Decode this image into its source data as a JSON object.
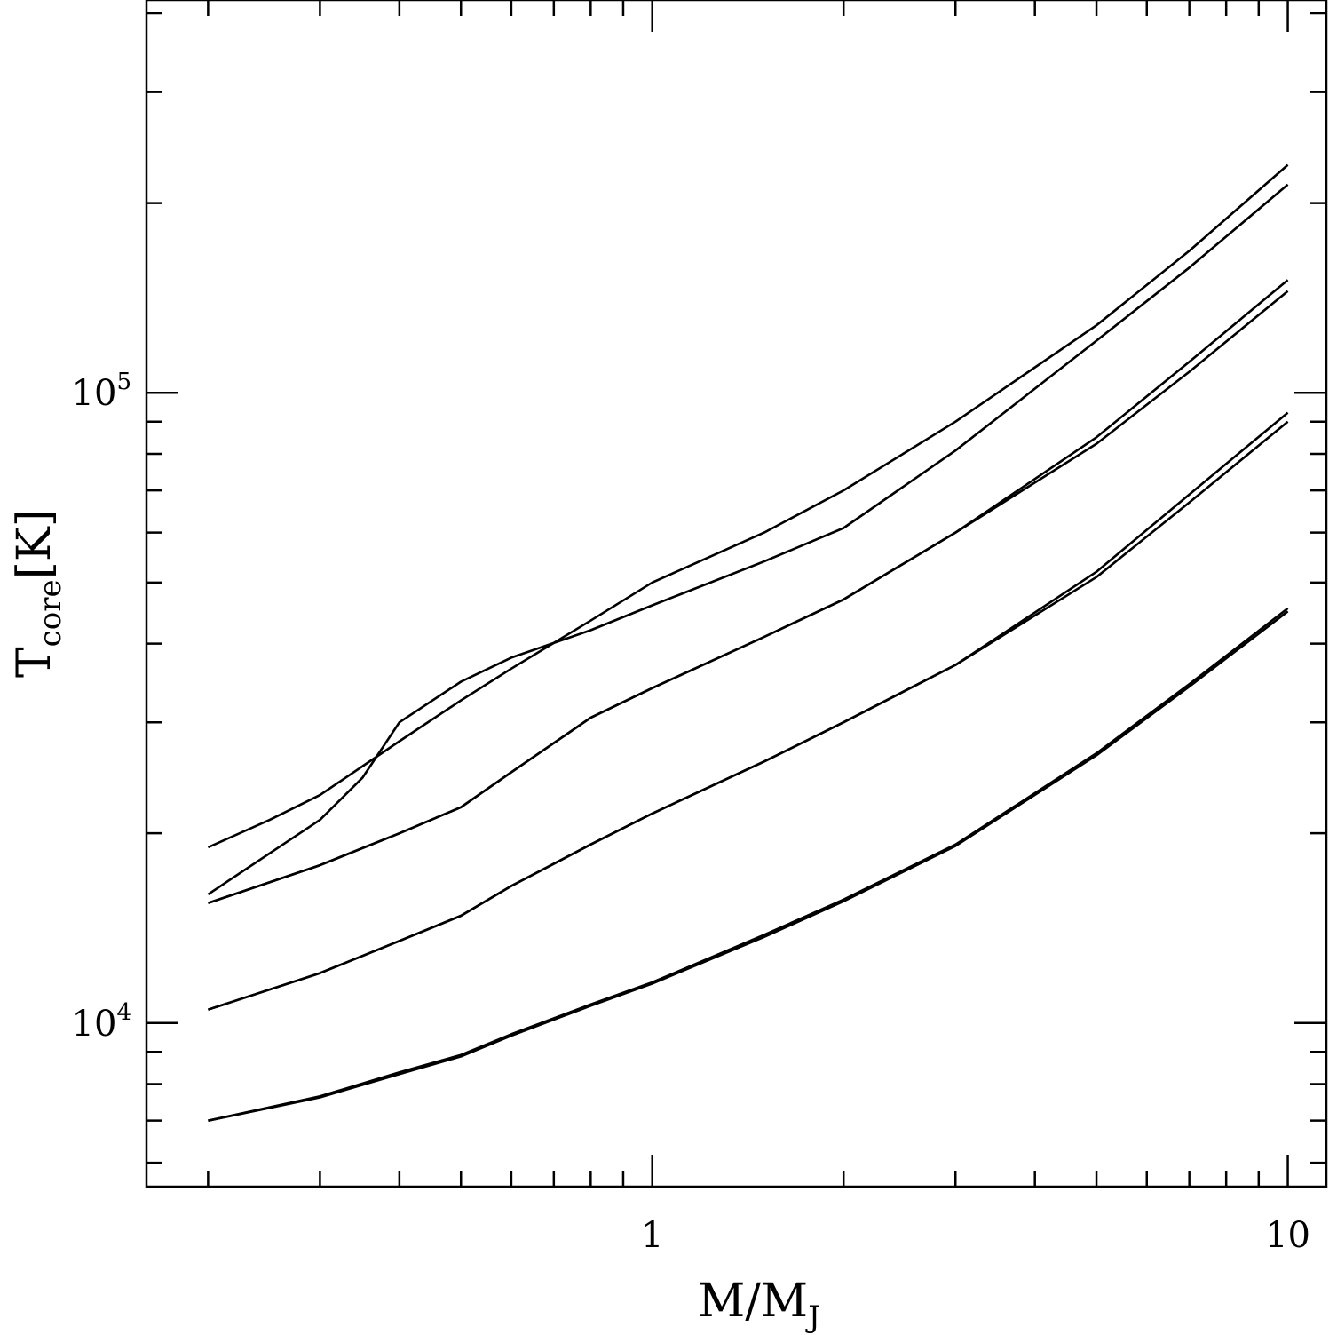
{
  "chart_data": {
    "type": "line",
    "xlabel": {
      "main": "M/M",
      "sub": "J"
    },
    "ylabel": {
      "main": "T",
      "sub": "core",
      "unit": "[K]"
    },
    "xscale": "log",
    "yscale": "log",
    "xlim": [
      0.16,
      11.5
    ],
    "ylim": [
      5500,
      420000
    ],
    "x_ticks": [
      {
        "value": 1,
        "label": "1"
      },
      {
        "value": 10,
        "label": "10"
      }
    ],
    "y_ticks": [
      {
        "value": 10000,
        "base": "10",
        "exp": "4"
      },
      {
        "value": 100000,
        "base": "10",
        "exp": "5"
      }
    ],
    "grid": false,
    "legend": "none",
    "line_color": "#000000",
    "series": [
      {
        "x": [
          0.2,
          0.25,
          0.3,
          0.4,
          0.5,
          0.6,
          0.8,
          1,
          1.5,
          2,
          3,
          5,
          7,
          10
        ],
        "y": [
          19000,
          21000,
          23000,
          28000,
          32500,
          36500,
          43500,
          50000,
          60000,
          70000,
          90000,
          128000,
          168000,
          230000
        ]
      },
      {
        "x": [
          0.2,
          0.3,
          0.35,
          0.4,
          0.5,
          0.6,
          0.8,
          1,
          1.5,
          2,
          3,
          5,
          7,
          10
        ],
        "y": [
          16000,
          21000,
          24500,
          30000,
          34800,
          38000,
          42000,
          46000,
          54000,
          61000,
          81000,
          121000,
          158000,
          214000
        ]
      },
      {
        "x": [
          0.2,
          0.3,
          0.4,
          0.5,
          0.6,
          0.8,
          1,
          1.5,
          2,
          3,
          5,
          7,
          10
        ],
        "y": [
          15500,
          17800,
          20000,
          22000,
          25000,
          30500,
          34000,
          41000,
          47000,
          60000,
          85000,
          112000,
          151000
        ]
      },
      {
        "x": [
          0.2,
          0.3,
          0.4,
          0.5,
          0.6,
          0.8,
          1,
          1.5,
          2,
          3,
          5,
          7,
          10
        ],
        "y": [
          15500,
          17800,
          20000,
          22000,
          25000,
          30500,
          34000,
          41000,
          47000,
          60000,
          83000,
          108000,
          145000
        ]
      },
      {
        "x": [
          0.2,
          0.3,
          0.4,
          0.5,
          0.6,
          0.8,
          1,
          1.5,
          2,
          3,
          5,
          7,
          10
        ],
        "y": [
          10500,
          12000,
          13500,
          14800,
          16500,
          19200,
          21500,
          26000,
          30000,
          37000,
          52000,
          69000,
          93000
        ]
      },
      {
        "x": [
          0.2,
          0.3,
          0.4,
          0.5,
          0.6,
          0.8,
          1,
          1.5,
          2,
          3,
          5,
          7,
          10
        ],
        "y": [
          10500,
          12000,
          13500,
          14800,
          16500,
          19200,
          21500,
          26000,
          30000,
          37000,
          51000,
          67000,
          90000
        ]
      },
      {
        "x": [
          0.2,
          0.3,
          0.4,
          0.5,
          0.6,
          0.8,
          1,
          1.5,
          2,
          3,
          5,
          7,
          10
        ],
        "y": [
          7000,
          7650,
          8350,
          8900,
          9600,
          10700,
          11600,
          13800,
          15700,
          19200,
          26800,
          34500,
          45500
        ]
      },
      {
        "x": [
          0.2,
          0.3,
          0.4,
          0.5,
          0.6,
          0.8,
          1,
          1.5,
          2,
          3,
          5,
          7,
          10
        ],
        "y": [
          7000,
          7620,
          8300,
          8850,
          9550,
          10650,
          11550,
          13700,
          15600,
          19100,
          26600,
          34200,
          45000
        ]
      }
    ]
  }
}
